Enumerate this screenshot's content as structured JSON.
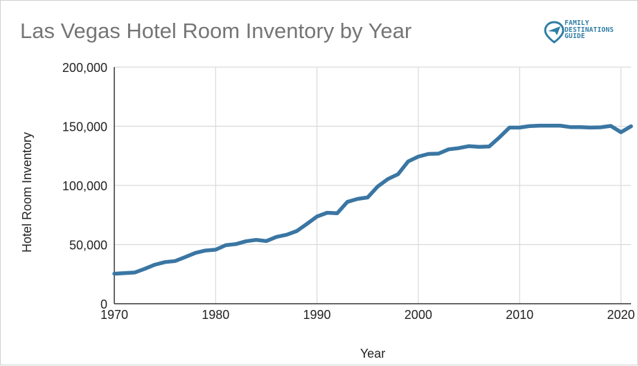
{
  "chart_data": {
    "type": "line",
    "title": "Las Vegas Hotel Room Inventory by Year",
    "xlabel": "Year",
    "ylabel": "Hotel Room Inventory",
    "xlim": [
      1970,
      2021
    ],
    "ylim": [
      0,
      200000
    ],
    "x_ticks": [
      1970,
      1980,
      1990,
      2000,
      2010,
      2020
    ],
    "x_tick_labels": [
      "1970",
      "1980",
      "1990",
      "2000",
      "2010",
      "2020"
    ],
    "y_ticks": [
      0,
      50000,
      100000,
      150000,
      200000
    ],
    "y_tick_labels": [
      "0",
      "50,000",
      "100,000",
      "150,000",
      "200,000"
    ],
    "grid": true,
    "legend": "none",
    "series": [
      {
        "color": "#3a76a3",
        "x": [
          1970,
          1971,
          1972,
          1973,
          1974,
          1975,
          1976,
          1977,
          1978,
          1979,
          1980,
          1981,
          1982,
          1983,
          1984,
          1985,
          1986,
          1987,
          1988,
          1989,
          1990,
          1991,
          1992,
          1993,
          1994,
          1995,
          1996,
          1997,
          1998,
          1999,
          2000,
          2001,
          2002,
          2003,
          2004,
          2005,
          2006,
          2007,
          2008,
          2009,
          2010,
          2011,
          2012,
          2013,
          2014,
          2015,
          2016,
          2017,
          2018,
          2019,
          2020,
          2021
        ],
        "y": [
          25400,
          25900,
          26400,
          29500,
          33000,
          35200,
          36100,
          39400,
          42900,
          45000,
          45700,
          49500,
          50400,
          52800,
          54000,
          53000,
          56500,
          58300,
          61400,
          67400,
          73700,
          76900,
          76500,
          86100,
          88600,
          89800,
          99100,
          105400,
          109500,
          120300,
          124300,
          126600,
          126900,
          130500,
          131500,
          133200,
          132600,
          132900,
          140500,
          148900,
          148900,
          150200,
          150500,
          150500,
          150500,
          149300,
          149300,
          148900,
          149100,
          150300,
          145000,
          150000
        ]
      }
    ],
    "brand": {
      "line1": "FAMILY",
      "line2": "DESTINATIONS",
      "line3": "GUIDE",
      "icon": "plane-pin-icon",
      "color": "#2f7da4"
    }
  }
}
